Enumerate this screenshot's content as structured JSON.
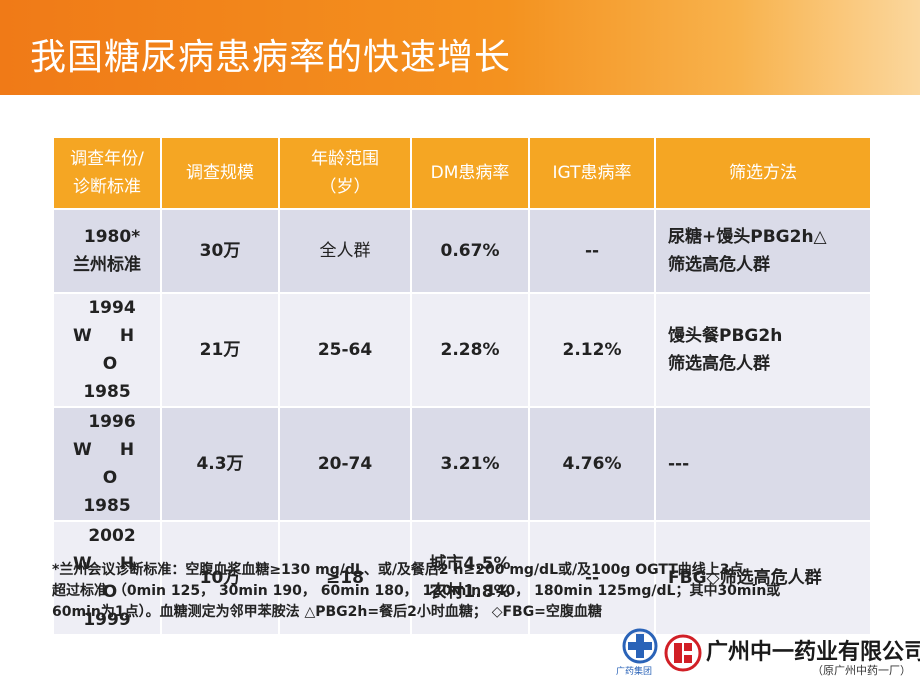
{
  "slide": {
    "title": "我国糖尿病患病率的快速增长"
  },
  "table": {
    "headers": {
      "year_line1": "调查年份/",
      "year_line2": "诊断标准",
      "scale": "调查规模",
      "age_line1": "年龄范围",
      "age_line2": "（岁）",
      "dm": "DM患病率",
      "igt": "IGT患病率",
      "method": "筛选方法"
    },
    "rows": [
      {
        "year": "1980*",
        "standard": "兰州标准",
        "scale": "30万",
        "age": "全人群",
        "dm": "0.67%",
        "igt": "--",
        "method_line1": "尿糖+馒头PBG2h△",
        "method_line2": "筛选高危人群"
      },
      {
        "year": "1994",
        "standard_letters": [
          "W",
          "H",
          "O"
        ],
        "standard_year": "1985",
        "scale": "21万",
        "age": "25-64",
        "dm": "2.28%",
        "igt": "2.12%",
        "method_line1": "馒头餐PBG2h",
        "method_line2": "筛选高危人群"
      },
      {
        "year": "1996",
        "standard_letters": [
          "W",
          "H",
          "O"
        ],
        "standard_year": "1985",
        "scale": "4.3万",
        "age": "20-74",
        "dm": "3.21%",
        "igt": "4.76%",
        "method_line1": "---"
      },
      {
        "year": "2002",
        "standard_letters": [
          "W",
          "H",
          "O"
        ],
        "standard_year": "1999",
        "scale": "10万",
        "age": "≥18",
        "dm_line1": "城市4.5%",
        "dm_line2": "农村1.8%",
        "igt": "--",
        "method_line1": "FBG◇筛选高危人群"
      }
    ]
  },
  "footnote": {
    "line1": "*兰州会议诊断标准：空腹血浆血糖≥130 mg/dL、或/及餐后2 h≥200 mg/dL或/及100g OGTT曲线上3点",
    "line2": "超过标准 （0min 125，  30min 190，  60min 180，  120min 140，  180min 125mg/dL；其中30min或",
    "line3": "60min为1点）。血糖测定为邻甲苯胺法 △PBG2h=餐后2小时血糖；  ◇FBG=空腹血糖"
  },
  "logo": {
    "group_label": "广药集团",
    "company_name": "广州中一药业有限公司",
    "company_sub": "（原广州中药一厂）"
  }
}
